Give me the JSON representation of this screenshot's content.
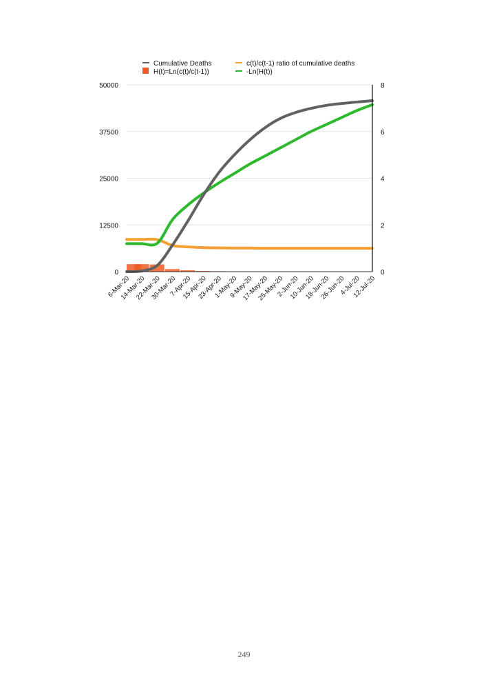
{
  "page_number": "249",
  "chart_data": {
    "type": "line",
    "title": "",
    "xlabel": "",
    "ylabel": "",
    "categories": [
      "6-Mar-20",
      "14-Mar-20",
      "22-Mar-20",
      "30-Mar-20",
      "7-Apr-20",
      "15-Apr-20",
      "23-Apr-20",
      "1-May-20",
      "9-May-20",
      "17-May-20",
      "25-May-20",
      "2-Jun-20",
      "10-Jun-20",
      "18-Jun-20",
      "26-Jun-20",
      "4-Jul-20",
      "12-Jul-20"
    ],
    "left_axis": {
      "ylim": [
        0,
        50000
      ],
      "ticks": [
        "0",
        "12500",
        "25000",
        "37500",
        "50000"
      ]
    },
    "right_axis": {
      "ylim": [
        0,
        8
      ],
      "ticks": [
        "0",
        "2",
        "4",
        "6",
        "8"
      ]
    },
    "grid": true,
    "legend_placement": "top",
    "series": [
      {
        "name": "Cumulative Deaths",
        "axis": "left",
        "kind": "line",
        "color": "#616161",
        "values": [
          0,
          200,
          1700,
          7200,
          13650,
          20500,
          26500,
          31200,
          35200,
          38500,
          41000,
          42600,
          43700,
          44500,
          45000,
          45400,
          45750
        ]
      },
      {
        "name": "c(t)/c(t-1) ratio of cumulative deaths",
        "axis": "right",
        "kind": "line",
        "color": "#f5a033",
        "values": [
          1.38,
          1.38,
          1.37,
          1.12,
          1.06,
          1.03,
          1.02,
          1.01,
          1.01,
          1.0,
          1.0,
          1.0,
          1.0,
          1.0,
          1.0,
          1.0,
          1.0
        ]
      },
      {
        "name": "H(t)=Ln(c(t)/c(t-1))",
        "axis": "right",
        "kind": "bar",
        "color": "#f05a22",
        "values": [
          0.32,
          0.32,
          0.31,
          0.11,
          0.06,
          0.03,
          0.02,
          0.01,
          0.01,
          0.0,
          0.0,
          0.0,
          0.0,
          0.0,
          0.0,
          0.0,
          0.0
        ]
      },
      {
        "name": "-Ln(H(t))",
        "axis": "right",
        "kind": "line",
        "color": "#2db82d",
        "values": [
          1.2,
          1.2,
          1.22,
          2.24,
          2.86,
          3.36,
          3.8,
          4.2,
          4.6,
          4.95,
          5.3,
          5.65,
          6.0,
          6.3,
          6.6,
          6.9,
          7.15
        ]
      }
    ]
  }
}
